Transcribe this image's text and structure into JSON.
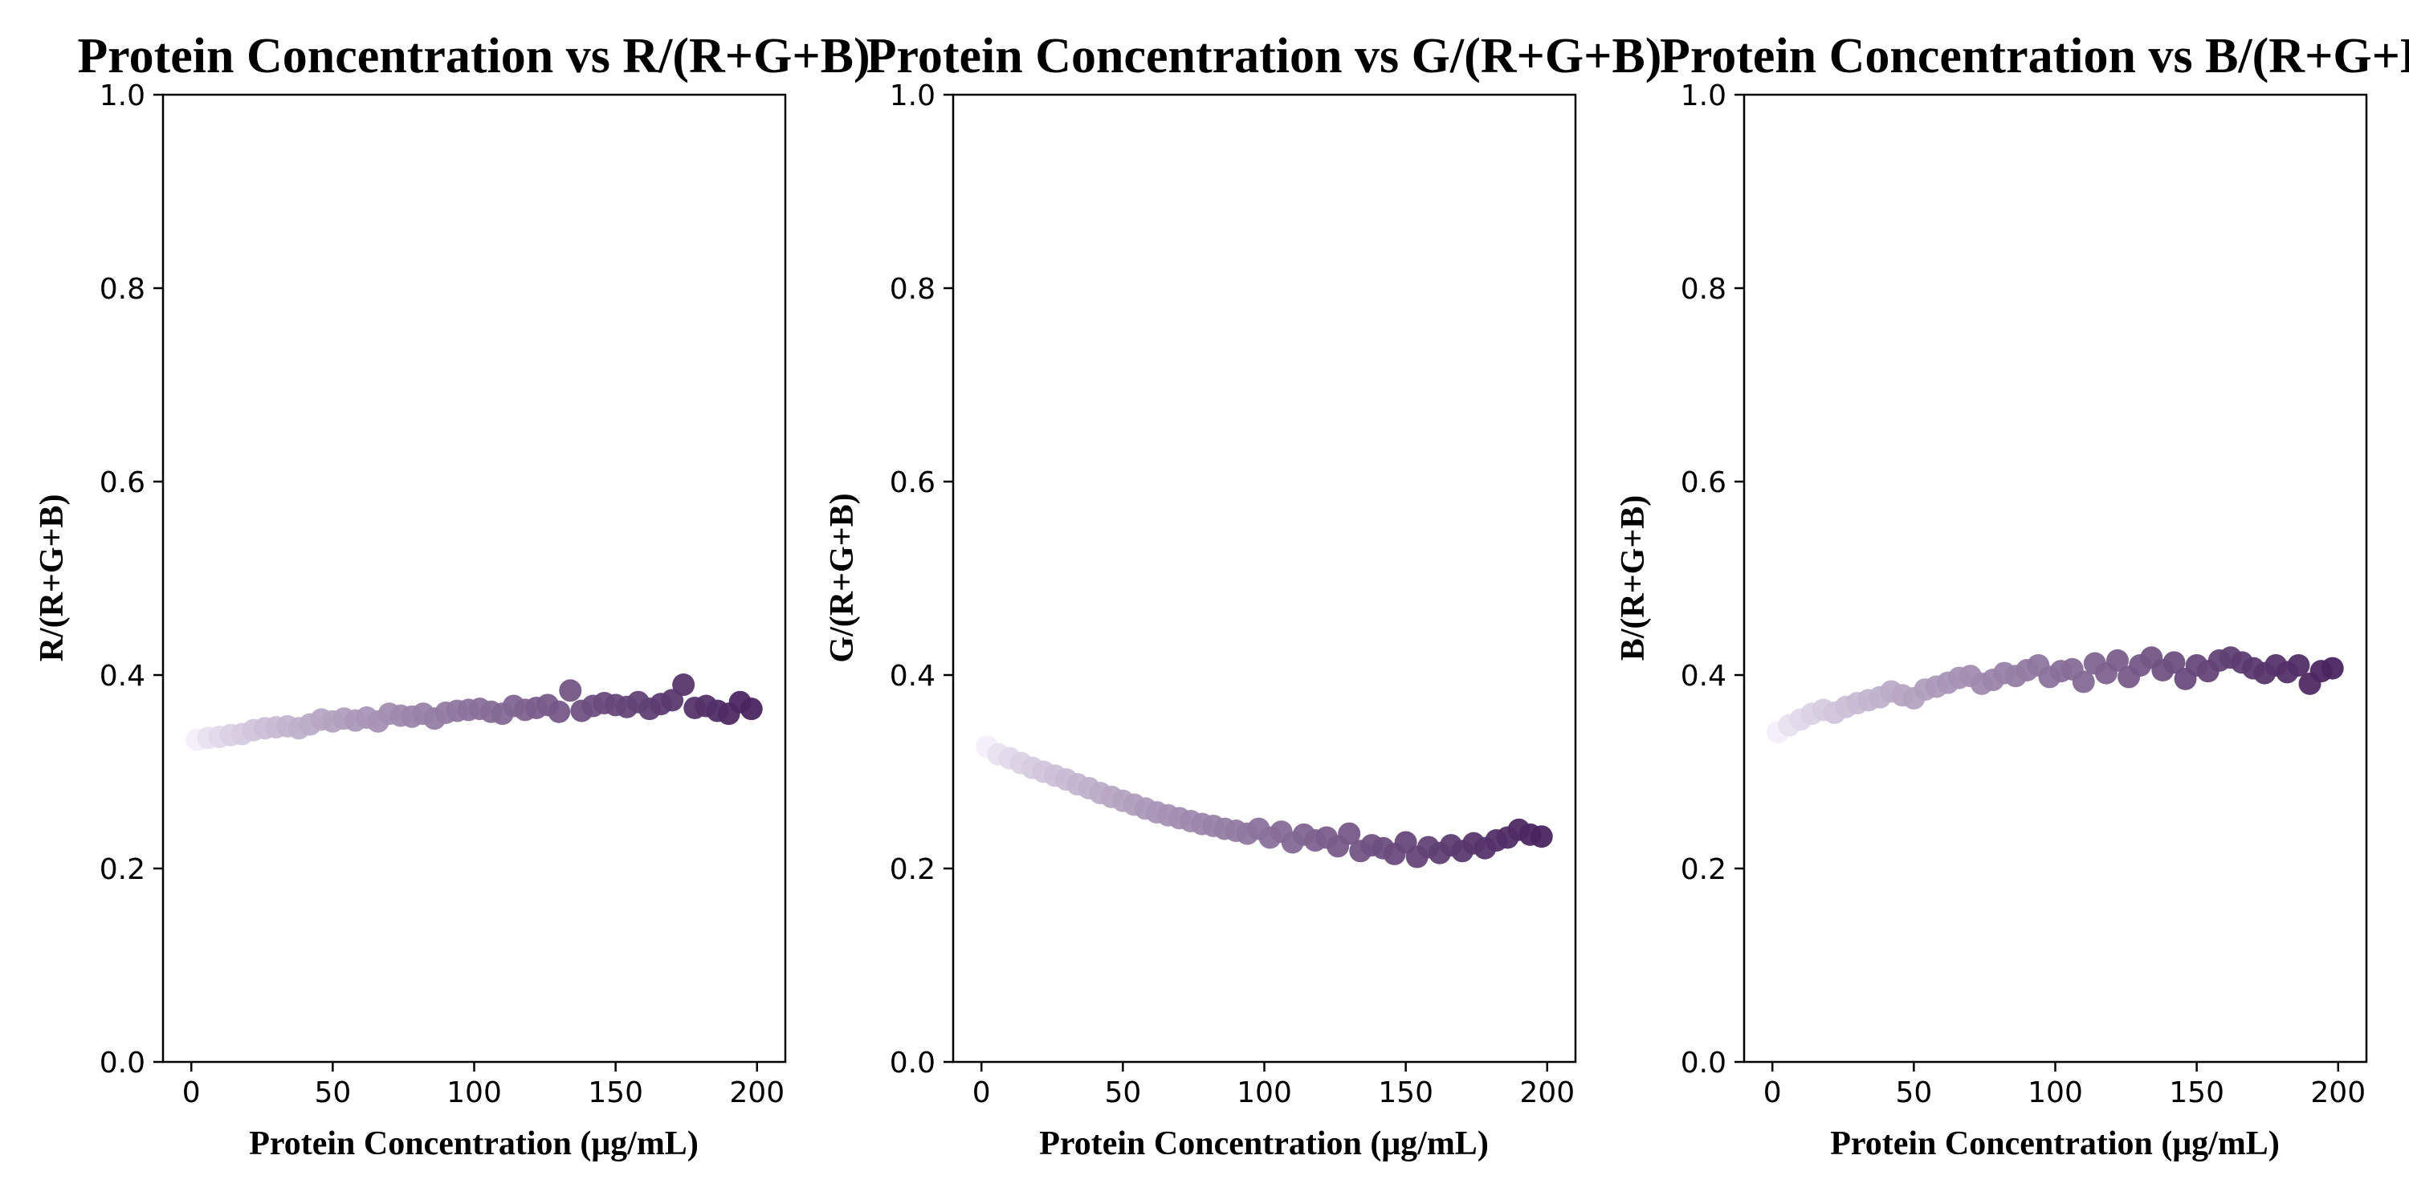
{
  "chart_data": [
    {
      "type": "scatter",
      "title": "Protein Concentration vs R/(R+G+B)",
      "xlabel": "Protein Concentration (μg/mL)",
      "ylabel": "R/(R+G+B)",
      "xlim": [
        -10,
        210
      ],
      "ylim": [
        0,
        1
      ],
      "xticks": [
        0,
        50,
        100,
        150,
        200
      ],
      "yticks": [
        0.0,
        0.2,
        0.4,
        0.6,
        0.8,
        1.0
      ],
      "grid": false,
      "color_encoding": "point color darkens from pale lavender to deep purple with protein concentration",
      "color_low": "#f3eefa",
      "color_high": "#4a2560",
      "series": [
        {
          "x": [
            2,
            6,
            10,
            14,
            18,
            22,
            26,
            30,
            34,
            38,
            42,
            46,
            50,
            54,
            58,
            62,
            66,
            70,
            74,
            78,
            82,
            86,
            90,
            94,
            98,
            102,
            106,
            110,
            114,
            118,
            122,
            126,
            130,
            134,
            138,
            142,
            146,
            150,
            154,
            158,
            162,
            166,
            170,
            174,
            178,
            182,
            186,
            190,
            194,
            198
          ],
          "y": [
            0.333,
            0.335,
            0.336,
            0.338,
            0.339,
            0.343,
            0.345,
            0.346,
            0.347,
            0.345,
            0.349,
            0.354,
            0.352,
            0.355,
            0.353,
            0.356,
            0.352,
            0.36,
            0.358,
            0.357,
            0.36,
            0.355,
            0.361,
            0.363,
            0.364,
            0.365,
            0.362,
            0.36,
            0.368,
            0.364,
            0.366,
            0.369,
            0.362,
            0.384,
            0.363,
            0.368,
            0.371,
            0.369,
            0.367,
            0.372,
            0.365,
            0.37,
            0.374,
            0.39,
            0.366,
            0.368,
            0.363,
            0.36,
            0.372,
            0.365
          ]
        }
      ]
    },
    {
      "type": "scatter",
      "title": "Protein Concentration vs G/(R+G+B)",
      "xlabel": "Protein Concentration (μg/mL)",
      "ylabel": "G/(R+G+B)",
      "xlim": [
        -10,
        210
      ],
      "ylim": [
        0,
        1
      ],
      "xticks": [
        0,
        50,
        100,
        150,
        200
      ],
      "yticks": [
        0.0,
        0.2,
        0.4,
        0.6,
        0.8,
        1.0
      ],
      "grid": false,
      "color_encoding": "point color darkens from pale lavender to deep purple with protein concentration",
      "color_low": "#f3eefa",
      "color_high": "#4a2560",
      "series": [
        {
          "x": [
            2,
            6,
            10,
            14,
            18,
            22,
            26,
            30,
            34,
            38,
            42,
            46,
            50,
            54,
            58,
            62,
            66,
            70,
            74,
            78,
            82,
            86,
            90,
            94,
            98,
            102,
            106,
            110,
            114,
            118,
            122,
            126,
            130,
            134,
            138,
            142,
            146,
            150,
            154,
            158,
            162,
            166,
            170,
            174,
            178,
            182,
            186,
            190,
            194,
            198
          ],
          "y": [
            0.326,
            0.318,
            0.314,
            0.309,
            0.304,
            0.3,
            0.296,
            0.292,
            0.287,
            0.283,
            0.278,
            0.274,
            0.27,
            0.266,
            0.262,
            0.258,
            0.255,
            0.252,
            0.249,
            0.246,
            0.244,
            0.241,
            0.239,
            0.236,
            0.241,
            0.232,
            0.238,
            0.227,
            0.235,
            0.229,
            0.232,
            0.223,
            0.236,
            0.218,
            0.224,
            0.221,
            0.215,
            0.227,
            0.212,
            0.222,
            0.216,
            0.224,
            0.218,
            0.226,
            0.221,
            0.229,
            0.232,
            0.24,
            0.235,
            0.233
          ]
        }
      ]
    },
    {
      "type": "scatter",
      "title": "Protein Concentration vs B/(R+G+B)",
      "xlabel": "Protein Concentration (μg/mL)",
      "ylabel": "B/(R+G+B)",
      "xlim": [
        -10,
        210
      ],
      "ylim": [
        0,
        1
      ],
      "xticks": [
        0,
        50,
        100,
        150,
        200
      ],
      "yticks": [
        0.0,
        0.2,
        0.4,
        0.6,
        0.8,
        1.0
      ],
      "grid": false,
      "color_encoding": "point color darkens from pale lavender to deep purple with protein concentration",
      "color_low": "#f3eefa",
      "color_high": "#4a2560",
      "series": [
        {
          "x": [
            2,
            6,
            10,
            14,
            18,
            22,
            26,
            30,
            34,
            38,
            42,
            46,
            50,
            54,
            58,
            62,
            66,
            70,
            74,
            78,
            82,
            86,
            90,
            94,
            98,
            102,
            106,
            110,
            114,
            118,
            122,
            126,
            130,
            134,
            138,
            142,
            146,
            150,
            154,
            158,
            162,
            166,
            170,
            174,
            178,
            182,
            186,
            190,
            194,
            198
          ],
          "y": [
            0.341,
            0.348,
            0.354,
            0.36,
            0.364,
            0.361,
            0.367,
            0.371,
            0.374,
            0.377,
            0.383,
            0.379,
            0.376,
            0.385,
            0.388,
            0.392,
            0.397,
            0.399,
            0.391,
            0.395,
            0.402,
            0.399,
            0.405,
            0.41,
            0.398,
            0.404,
            0.406,
            0.393,
            0.412,
            0.402,
            0.415,
            0.398,
            0.41,
            0.418,
            0.405,
            0.413,
            0.396,
            0.41,
            0.404,
            0.415,
            0.418,
            0.413,
            0.407,
            0.402,
            0.41,
            0.403,
            0.41,
            0.391,
            0.404,
            0.407
          ]
        }
      ]
    }
  ]
}
